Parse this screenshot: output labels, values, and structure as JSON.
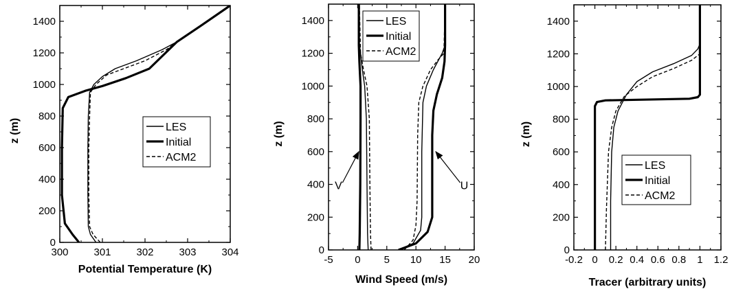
{
  "chart_data": [
    {
      "type": "line",
      "xlabel": "Potential Temperature (K)",
      "ylabel": "z (m)",
      "xlim": [
        300,
        304
      ],
      "ylim": [
        0,
        1500
      ],
      "xticks": [
        "300",
        "301",
        "302",
        "303",
        "304"
      ],
      "yticks": [
        "0",
        "200",
        "400",
        "600",
        "800",
        "1000",
        "1200",
        "1400"
      ],
      "legend": {
        "position": "center-right",
        "entries": [
          "LES",
          "Initial",
          "ACM2"
        ]
      },
      "series": [
        {
          "name": "LES",
          "style": "thin-solid",
          "x": [
            300.85,
            300.72,
            300.67,
            300.66,
            300.66,
            300.67,
            300.7,
            300.8,
            301.0,
            301.3,
            301.8,
            302.4,
            302.75,
            303.3,
            304.0
          ],
          "y": [
            0,
            50,
            100,
            300,
            600,
            800,
            950,
            1000,
            1050,
            1100,
            1150,
            1220,
            1270,
            1370,
            1500
          ]
        },
        {
          "name": "Initial",
          "style": "thick-solid",
          "x": [
            300.45,
            300.3,
            300.12,
            300.05,
            300.05,
            300.07,
            300.2,
            300.6,
            301.0,
            301.55,
            302.1,
            302.75,
            303.3,
            304.0
          ],
          "y": [
            0,
            50,
            120,
            300,
            600,
            850,
            920,
            960,
            990,
            1040,
            1100,
            1270,
            1370,
            1500
          ]
        },
        {
          "name": "ACM2",
          "style": "dashed",
          "x": [
            300.95,
            300.78,
            300.7,
            300.68,
            300.68,
            300.7,
            300.72,
            300.85,
            301.1,
            301.5,
            302.0,
            302.5,
            302.75,
            303.3,
            304.0
          ],
          "y": [
            0,
            50,
            100,
            300,
            600,
            800,
            950,
            1000,
            1060,
            1100,
            1150,
            1220,
            1270,
            1370,
            1500
          ]
        }
      ]
    },
    {
      "type": "line",
      "xlabel": "Wind Speed (m/s)",
      "ylabel": "z (m)",
      "xlim": [
        -5,
        20
      ],
      "ylim": [
        0,
        1500
      ],
      "xticks": [
        "-5",
        "0",
        "5",
        "10",
        "15",
        "20"
      ],
      "yticks": [
        "0",
        "200",
        "400",
        "600",
        "800",
        "1000",
        "1200",
        "1400"
      ],
      "legend": {
        "position": "top-center",
        "entries": [
          "LES",
          "Initial",
          "ACM2"
        ]
      },
      "annotations": [
        "V",
        "U"
      ],
      "series": [
        {
          "name": "LES",
          "component": "V",
          "style": "thin-solid",
          "x": [
            1.8,
            1.7,
            1.6,
            1.5,
            1.2,
            0.8,
            0.5,
            0.3,
            0.3
          ],
          "y": [
            0,
            100,
            400,
            800,
            1000,
            1100,
            1200,
            1260,
            1500
          ]
        },
        {
          "name": "Initial",
          "component": "V",
          "style": "thick-solid",
          "x": [
            0.3,
            0.35,
            0.45,
            0.5,
            0.5,
            0.3,
            0.2,
            0.2
          ],
          "y": [
            0,
            100,
            400,
            800,
            1000,
            1150,
            1250,
            1500
          ]
        },
        {
          "name": "ACM2",
          "component": "V",
          "style": "dashed",
          "x": [
            2.3,
            2.2,
            2.1,
            2.0,
            1.6,
            1.0,
            0.5,
            0.3
          ],
          "y": [
            0,
            100,
            400,
            800,
            1000,
            1100,
            1200,
            1500
          ]
        },
        {
          "name": "LES",
          "component": "U",
          "style": "thin-solid",
          "x": [
            7.0,
            9.5,
            10.8,
            11.0,
            11.0,
            11.2,
            11.8,
            13.0,
            14.5,
            15.0,
            15.0
          ],
          "y": [
            0,
            40,
            120,
            200,
            600,
            900,
            1000,
            1100,
            1200,
            1250,
            1500
          ]
        },
        {
          "name": "Initial",
          "component": "U",
          "style": "thick-solid",
          "x": [
            7.0,
            10.0,
            12.0,
            12.8,
            12.8,
            13.0,
            13.6,
            14.5,
            14.9,
            15.0,
            15.0
          ],
          "y": [
            0,
            40,
            110,
            200,
            700,
            850,
            950,
            1050,
            1150,
            1250,
            1500
          ]
        },
        {
          "name": "ACM2",
          "component": "U",
          "style": "dashed",
          "x": [
            8.0,
            9.5,
            10.0,
            10.2,
            10.3,
            10.5,
            11.2,
            12.5,
            13.8,
            14.8,
            15.0
          ],
          "y": [
            0,
            60,
            150,
            300,
            700,
            900,
            1000,
            1100,
            1160,
            1200,
            1500
          ]
        }
      ]
    },
    {
      "type": "line",
      "xlabel": "Tracer (arbitrary units)",
      "ylabel": "z (m)",
      "xlim": [
        -0.2,
        1.2
      ],
      "ylim": [
        0,
        1500
      ],
      "xticks": [
        "-0.2",
        "0",
        "0.2",
        "0.4",
        "0.6",
        "0.8",
        "1",
        "1.2"
      ],
      "yticks": [
        "0",
        "200",
        "400",
        "600",
        "800",
        "1000",
        "1200",
        "1400"
      ],
      "legend": {
        "position": "bottom-center",
        "entries": [
          "LES",
          "Initial",
          "ACM2"
        ]
      },
      "series": [
        {
          "name": "LES",
          "style": "thin-solid",
          "x": [
            0.15,
            0.15,
            0.16,
            0.18,
            0.22,
            0.3,
            0.4,
            0.55,
            0.75,
            0.92,
            0.98,
            1.0,
            1.0
          ],
          "y": [
            0,
            300,
            600,
            750,
            850,
            950,
            1030,
            1090,
            1140,
            1190,
            1230,
            1260,
            1500
          ]
        },
        {
          "name": "Initial",
          "style": "thick-solid",
          "x": [
            0.0,
            0.0,
            0.02,
            0.1,
            0.9,
            0.98,
            1.0,
            1.0
          ],
          "y": [
            0,
            880,
            905,
            915,
            925,
            935,
            950,
            1500
          ]
        },
        {
          "name": "ACM2",
          "style": "dashed",
          "x": [
            0.1,
            0.11,
            0.13,
            0.16,
            0.2,
            0.28,
            0.4,
            0.55,
            0.75,
            0.92,
            1.0,
            1.0
          ],
          "y": [
            0,
            250,
            600,
            750,
            850,
            940,
            1000,
            1060,
            1110,
            1160,
            1200,
            1500
          ]
        }
      ]
    }
  ]
}
